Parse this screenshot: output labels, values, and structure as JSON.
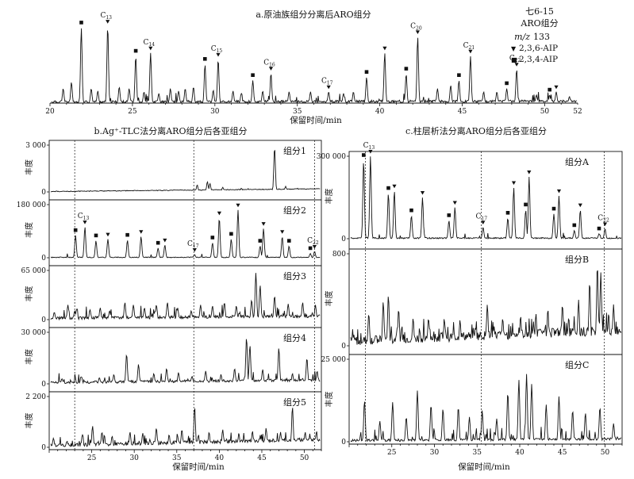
{
  "chart_data": [
    {
      "id": "a",
      "type": "line",
      "title": "a.原油族组分分离后ARO组分",
      "xlabel": "保留时间/min",
      "xlim": [
        20,
        52
      ],
      "xticks": [
        "20",
        "25",
        "30",
        "35",
        "40",
        "45",
        "50",
        "52"
      ],
      "xtick_values": [
        20,
        25,
        30,
        35,
        40,
        45,
        50,
        52
      ],
      "ylim": [
        0,
        100
      ],
      "legend": {
        "sample": "七6-15",
        "fraction": "ARO组分",
        "mz_label": "m/z",
        "mz_value": "133",
        "entries": [
          {
            "symbol": "▼",
            "label": "2,3,6-AIP"
          },
          {
            "symbol": "■",
            "label": "2,3,4-AIP"
          }
        ]
      },
      "peaks": [
        {
          "x": 20.8,
          "y": 18
        },
        {
          "x": 21.3,
          "y": 26
        },
        {
          "x": 21.9,
          "y": 93,
          "mark": "square"
        },
        {
          "x": 22.5,
          "y": 18
        },
        {
          "x": 22.9,
          "y": 15
        },
        {
          "x": 23.5,
          "y": 95,
          "mark": "tri",
          "label": "C13"
        },
        {
          "x": 24.2,
          "y": 20
        },
        {
          "x": 24.8,
          "y": 18
        },
        {
          "x": 25.2,
          "y": 58,
          "mark": "square"
        },
        {
          "x": 25.7,
          "y": 14
        },
        {
          "x": 26.1,
          "y": 62,
          "mark": "tri",
          "label": "C14"
        },
        {
          "x": 26.6,
          "y": 12
        },
        {
          "x": 27.3,
          "y": 18
        },
        {
          "x": 27.8,
          "y": 15
        },
        {
          "x": 28.2,
          "y": 18
        },
        {
          "x": 28.7,
          "y": 20
        },
        {
          "x": 29.4,
          "y": 48,
          "mark": "square"
        },
        {
          "x": 29.9,
          "y": 16
        },
        {
          "x": 30.2,
          "y": 54,
          "mark": "tri",
          "label": "C15"
        },
        {
          "x": 31.1,
          "y": 15
        },
        {
          "x": 31.6,
          "y": 12
        },
        {
          "x": 32.3,
          "y": 28,
          "mark": "square"
        },
        {
          "x": 32.9,
          "y": 15
        },
        {
          "x": 33.4,
          "y": 37,
          "mark": "tri",
          "label": "C16"
        },
        {
          "x": 34.5,
          "y": 14
        },
        {
          "x": 35.8,
          "y": 14
        },
        {
          "x": 36.9,
          "y": 14,
          "mark": "tri",
          "label": "C17"
        },
        {
          "x": 37.8,
          "y": 12
        },
        {
          "x": 38.4,
          "y": 14
        },
        {
          "x": 39.2,
          "y": 32,
          "mark": "square"
        },
        {
          "x": 40.3,
          "y": 62,
          "mark": "tri"
        },
        {
          "x": 41.6,
          "y": 36,
          "mark": "square"
        },
        {
          "x": 42.3,
          "y": 82,
          "mark": "tri",
          "label": "C20"
        },
        {
          "x": 43.5,
          "y": 18
        },
        {
          "x": 44.3,
          "y": 22
        },
        {
          "x": 44.8,
          "y": 28,
          "mark": "square"
        },
        {
          "x": 45.5,
          "y": 58,
          "mark": "tri",
          "label": "C21"
        },
        {
          "x": 46.3,
          "y": 14
        },
        {
          "x": 47.1,
          "y": 14
        },
        {
          "x": 47.7,
          "y": 18,
          "mark": "square"
        },
        {
          "x": 48.3,
          "y": 42,
          "mark": "tri",
          "label": "C22"
        },
        {
          "x": 49.5,
          "y": 10
        },
        {
          "x": 50.3,
          "y": 10,
          "mark": "square"
        },
        {
          "x": 50.7,
          "y": 14,
          "mark": "tri"
        },
        {
          "x": 51.5,
          "y": 8
        }
      ]
    },
    {
      "id": "b",
      "type": "line",
      "title": "b.Ag⁺-TLC法分离ARO组分后各亚组分",
      "xlabel": "保留时间/min",
      "xlim": [
        20,
        52
      ],
      "xticks": [
        "25",
        "30",
        "35",
        "40",
        "45",
        "50"
      ],
      "xtick_values": [
        25,
        30,
        35,
        40,
        45,
        50
      ],
      "ylabel": "丰度",
      "dashed_x": [
        23.0,
        37.0,
        51.2
      ],
      "subplots": [
        {
          "label": "组分1",
          "ymax_label": "3 000",
          "peaks": [
            {
              "x": 37.4,
              "y": 15
            },
            {
              "x": 38.6,
              "y": 22
            },
            {
              "x": 38.9,
              "y": 18
            },
            {
              "x": 40.4,
              "y": 10
            },
            {
              "x": 42.6,
              "y": 8
            },
            {
              "x": 46.5,
              "y": 95
            },
            {
              "x": 47.8,
              "y": 12
            },
            {
              "x": 49.2,
              "y": 8
            }
          ]
        },
        {
          "label": "组分2",
          "ymax_label": "180 000",
          "peaks": [
            {
              "x": 23.1,
              "y": 42,
              "mark": "square"
            },
            {
              "x": 24.2,
              "y": 58,
              "mark": "tri",
              "label": "C13"
            },
            {
              "x": 25.5,
              "y": 32,
              "mark": "square"
            },
            {
              "x": 26.9,
              "y": 35,
              "mark": "tri"
            },
            {
              "x": 29.2,
              "y": 33,
              "mark": "square"
            },
            {
              "x": 30.8,
              "y": 40,
              "mark": "tri"
            },
            {
              "x": 32.8,
              "y": 18,
              "mark": "square"
            },
            {
              "x": 33.6,
              "y": 24,
              "mark": "tri"
            },
            {
              "x": 37.1,
              "y": 6,
              "mark": "tri",
              "label": "C17"
            },
            {
              "x": 39.2,
              "y": 28,
              "mark": "square"
            },
            {
              "x": 40.0,
              "y": 75,
              "mark": "tri"
            },
            {
              "x": 41.4,
              "y": 35,
              "mark": "square"
            },
            {
              "x": 42.2,
              "y": 90,
              "mark": "tri"
            },
            {
              "x": 44.8,
              "y": 22,
              "mark": "square"
            },
            {
              "x": 45.2,
              "y": 55,
              "mark": "tri"
            },
            {
              "x": 47.4,
              "y": 40,
              "mark": "tri"
            },
            {
              "x": 48.2,
              "y": 22,
              "mark": "square"
            },
            {
              "x": 50.7,
              "y": 8,
              "mark": "square"
            },
            {
              "x": 51.2,
              "y": 12,
              "mark": "tri",
              "label": "C22"
            }
          ]
        },
        {
          "label": "组分3",
          "ymax_label": "65 000",
          "peaks": [
            {
              "x": 20.6,
              "y": 15
            },
            {
              "x": 22.2,
              "y": 30
            },
            {
              "x": 23.0,
              "y": 18
            },
            {
              "x": 24.8,
              "y": 20
            },
            {
              "x": 26.0,
              "y": 24
            },
            {
              "x": 27.1,
              "y": 18
            },
            {
              "x": 28.9,
              "y": 35
            },
            {
              "x": 29.9,
              "y": 30
            },
            {
              "x": 31.2,
              "y": 24
            },
            {
              "x": 32.6,
              "y": 30
            },
            {
              "x": 33.9,
              "y": 35
            },
            {
              "x": 35.1,
              "y": 24
            },
            {
              "x": 36.7,
              "y": 18
            },
            {
              "x": 37.8,
              "y": 30
            },
            {
              "x": 39.2,
              "y": 28
            },
            {
              "x": 40.6,
              "y": 35
            },
            {
              "x": 42.0,
              "y": 28
            },
            {
              "x": 43.8,
              "y": 40
            },
            {
              "x": 44.3,
              "y": 95
            },
            {
              "x": 44.8,
              "y": 70
            },
            {
              "x": 46.5,
              "y": 48
            },
            {
              "x": 48.1,
              "y": 32
            },
            {
              "x": 49.8,
              "y": 35
            },
            {
              "x": 51.3,
              "y": 30
            }
          ]
        },
        {
          "label": "组分4",
          "ymax_label": "30 000",
          "peaks": [
            {
              "x": 21.5,
              "y": 10
            },
            {
              "x": 23.8,
              "y": 14
            },
            {
              "x": 25.9,
              "y": 12
            },
            {
              "x": 27.6,
              "y": 18
            },
            {
              "x": 29.1,
              "y": 58
            },
            {
              "x": 30.5,
              "y": 38
            },
            {
              "x": 32.3,
              "y": 20
            },
            {
              "x": 33.8,
              "y": 30
            },
            {
              "x": 35.2,
              "y": 22
            },
            {
              "x": 36.8,
              "y": 15
            },
            {
              "x": 38.4,
              "y": 25
            },
            {
              "x": 40.2,
              "y": 18
            },
            {
              "x": 41.8,
              "y": 30
            },
            {
              "x": 43.2,
              "y": 90
            },
            {
              "x": 43.6,
              "y": 75
            },
            {
              "x": 45.1,
              "y": 28
            },
            {
              "x": 47.0,
              "y": 70
            },
            {
              "x": 48.6,
              "y": 20
            },
            {
              "x": 50.3,
              "y": 50
            },
            {
              "x": 51.5,
              "y": 25
            }
          ]
        },
        {
          "label": "组分5",
          "ymax_label": "2 200",
          "peaks": [
            {
              "x": 20.5,
              "y": 18
            },
            {
              "x": 22.1,
              "y": 12
            },
            {
              "x": 23.9,
              "y": 25
            },
            {
              "x": 25.1,
              "y": 42
            },
            {
              "x": 26.2,
              "y": 30
            },
            {
              "x": 27.4,
              "y": 22
            },
            {
              "x": 29.5,
              "y": 30
            },
            {
              "x": 31.0,
              "y": 28
            },
            {
              "x": 32.6,
              "y": 38
            },
            {
              "x": 34.1,
              "y": 25
            },
            {
              "x": 35.6,
              "y": 35
            },
            {
              "x": 37.1,
              "y": 80
            },
            {
              "x": 38.8,
              "y": 30
            },
            {
              "x": 40.4,
              "y": 35
            },
            {
              "x": 42.3,
              "y": 28
            },
            {
              "x": 43.9,
              "y": 32
            },
            {
              "x": 45.5,
              "y": 38
            },
            {
              "x": 47.2,
              "y": 30
            },
            {
              "x": 48.6,
              "y": 80
            },
            {
              "x": 50.1,
              "y": 30
            },
            {
              "x": 51.4,
              "y": 28
            }
          ]
        }
      ]
    },
    {
      "id": "c",
      "type": "line",
      "title": "c.柱层析法分离ARO组分后各亚组分",
      "xlabel": "保留时间/min",
      "xlim": [
        20,
        52
      ],
      "xticks": [
        "25",
        "30",
        "35",
        "40",
        "45",
        "50"
      ],
      "xtick_values": [
        25,
        30,
        35,
        40,
        45,
        50
      ],
      "ylabel": "丰度",
      "dashed_x": [
        21.9,
        35.5,
        49.9
      ],
      "subplots": [
        {
          "label": "组分A",
          "ymax_label": "300 000",
          "peaks": [
            {
              "x": 21.7,
              "y": 95,
              "mark": "square"
            },
            {
              "x": 22.5,
              "y": 100,
              "mark": "tri",
              "label": "C13"
            },
            {
              "x": 24.6,
              "y": 55,
              "mark": "square"
            },
            {
              "x": 25.3,
              "y": 58,
              "mark": "tri"
            },
            {
              "x": 27.3,
              "y": 28,
              "mark": "square"
            },
            {
              "x": 28.6,
              "y": 50,
              "mark": "tri"
            },
            {
              "x": 31.7,
              "y": 22,
              "mark": "square"
            },
            {
              "x": 32.4,
              "y": 38,
              "mark": "tri"
            },
            {
              "x": 35.7,
              "y": 14,
              "mark": "tri",
              "label": "C17"
            },
            {
              "x": 38.6,
              "y": 25,
              "mark": "square"
            },
            {
              "x": 39.3,
              "y": 62,
              "mark": "tri"
            },
            {
              "x": 40.7,
              "y": 35,
              "mark": "square"
            },
            {
              "x": 41.1,
              "y": 75,
              "mark": "tri"
            },
            {
              "x": 44.0,
              "y": 30,
              "mark": "square"
            },
            {
              "x": 44.6,
              "y": 52,
              "mark": "tri"
            },
            {
              "x": 46.4,
              "y": 10,
              "mark": "square"
            },
            {
              "x": 47.1,
              "y": 35,
              "mark": "tri"
            },
            {
              "x": 49.3,
              "y": 6,
              "mark": "square"
            },
            {
              "x": 50.0,
              "y": 12,
              "mark": "tri",
              "label": "C22"
            }
          ]
        },
        {
          "label": "组分B",
          "ymax_label": "800",
          "peaks": [
            {
              "x": 22.3,
              "y": 35
            },
            {
              "x": 24.0,
              "y": 48
            },
            {
              "x": 24.6,
              "y": 55
            },
            {
              "x": 25.8,
              "y": 40
            },
            {
              "x": 27.5,
              "y": 30
            },
            {
              "x": 29.3,
              "y": 30
            },
            {
              "x": 31.2,
              "y": 25
            },
            {
              "x": 33.0,
              "y": 28
            },
            {
              "x": 34.8,
              "y": 20
            },
            {
              "x": 36.2,
              "y": 45
            },
            {
              "x": 38.0,
              "y": 30
            },
            {
              "x": 40.1,
              "y": 32
            },
            {
              "x": 41.9,
              "y": 35
            },
            {
              "x": 43.3,
              "y": 40
            },
            {
              "x": 45.0,
              "y": 45
            },
            {
              "x": 46.9,
              "y": 50
            },
            {
              "x": 48.2,
              "y": 70
            },
            {
              "x": 49.1,
              "y": 88
            },
            {
              "x": 49.5,
              "y": 80
            },
            {
              "x": 51.0,
              "y": 45
            }
          ]
        },
        {
          "label": "组分C",
          "ymax_label": "25 000",
          "peaks": [
            {
              "x": 21.8,
              "y": 50
            },
            {
              "x": 23.6,
              "y": 25
            },
            {
              "x": 25.1,
              "y": 48
            },
            {
              "x": 26.7,
              "y": 30
            },
            {
              "x": 28.0,
              "y": 62
            },
            {
              "x": 29.6,
              "y": 45
            },
            {
              "x": 31.0,
              "y": 40
            },
            {
              "x": 32.8,
              "y": 42
            },
            {
              "x": 34.1,
              "y": 30
            },
            {
              "x": 35.6,
              "y": 38
            },
            {
              "x": 37.3,
              "y": 28
            },
            {
              "x": 38.6,
              "y": 60
            },
            {
              "x": 39.9,
              "y": 75
            },
            {
              "x": 40.8,
              "y": 82
            },
            {
              "x": 41.4,
              "y": 70
            },
            {
              "x": 43.1,
              "y": 45
            },
            {
              "x": 44.6,
              "y": 55
            },
            {
              "x": 46.2,
              "y": 38
            },
            {
              "x": 47.7,
              "y": 35
            },
            {
              "x": 49.4,
              "y": 42
            },
            {
              "x": 51.0,
              "y": 22
            }
          ]
        }
      ]
    }
  ]
}
